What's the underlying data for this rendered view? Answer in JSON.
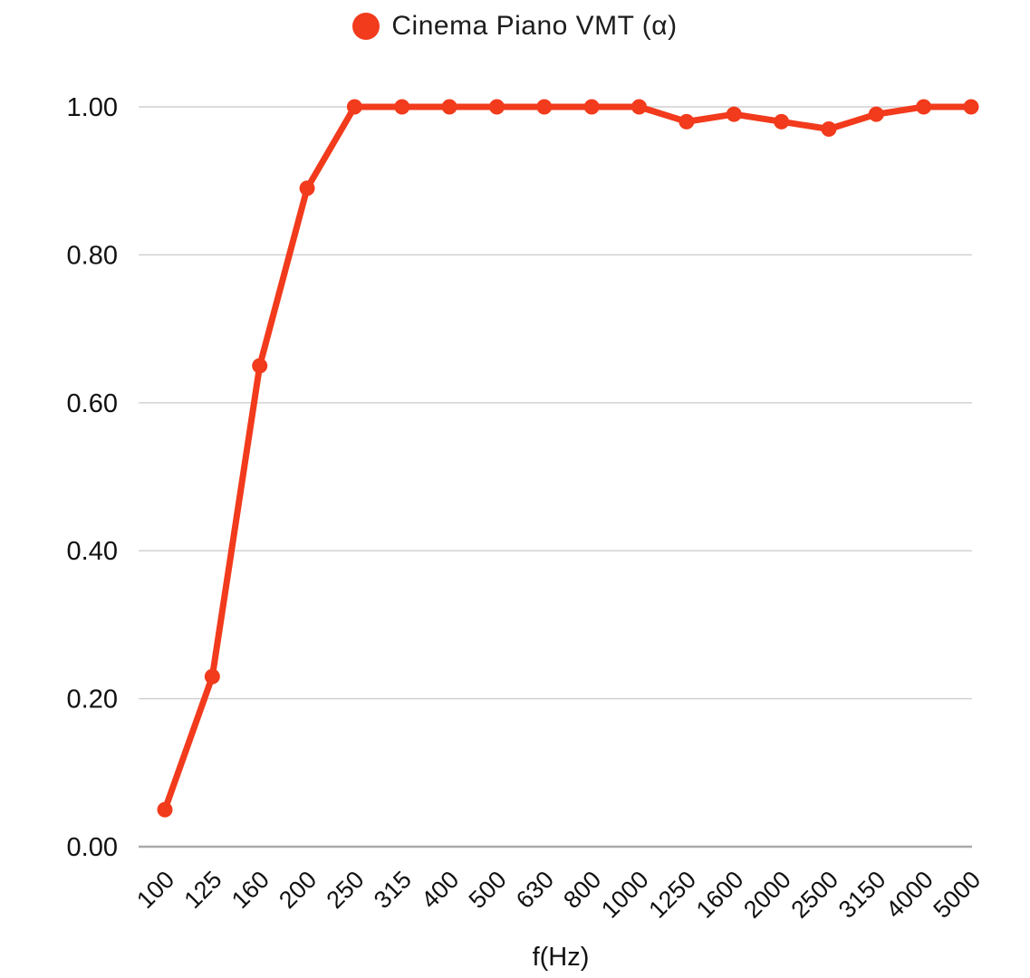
{
  "legend": {
    "label": "Cinema Piano VMT (α)"
  },
  "axes": {
    "x_title": "f(Hz)",
    "y_ticks": [
      "1.00",
      "0.80",
      "0.60",
      "0.40",
      "0.20",
      "0.00"
    ],
    "y_tick_values": [
      1.0,
      0.8,
      0.6,
      0.4,
      0.2,
      0.0
    ]
  },
  "chart_data": {
    "type": "line",
    "title": "",
    "legend_entries": [
      "Cinema Piano VMT (α)"
    ],
    "legend_position": "top",
    "categories": [
      "100",
      "125",
      "160",
      "200",
      "250",
      "315",
      "400",
      "500",
      "630",
      "800",
      "1000",
      "1250",
      "1600",
      "2000",
      "2500",
      "3150",
      "4000",
      "5000"
    ],
    "series": [
      {
        "name": "Cinema Piano VMT (α)",
        "color": "#F23A1C",
        "marker": "circle",
        "values": [
          0.05,
          0.23,
          0.65,
          0.89,
          1.0,
          1.0,
          1.0,
          1.0,
          1.0,
          1.0,
          1.0,
          0.98,
          0.99,
          0.98,
          0.97,
          0.99,
          1.0,
          1.0
        ]
      }
    ],
    "xlabel": "f(Hz)",
    "ylabel": "",
    "ylim": [
      0,
      1.0
    ],
    "y_tick_step": 0.2,
    "grid": true,
    "x_tick_rotation_deg": -45
  },
  "colors": {
    "series": "#F23A1C",
    "grid": "#CFCFCF",
    "baseline": "#A9A9A9",
    "text": "#111111"
  }
}
